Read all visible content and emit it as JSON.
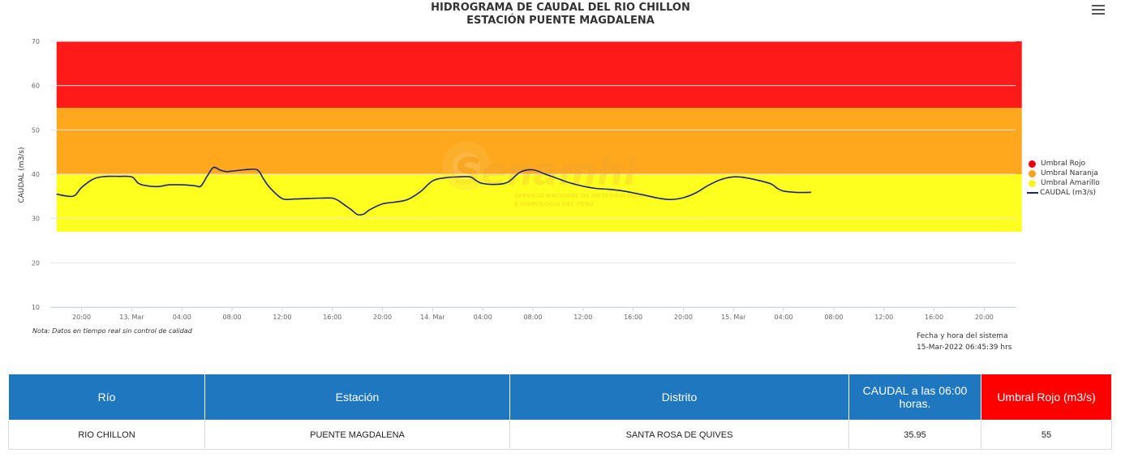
{
  "header": {
    "title_line1": "HIDROGRAMA DE CAUDAL DEL RIO CHILLON",
    "title_line2": "ESTACIÓN PUENTE MAGDALENA"
  },
  "chart_data": {
    "type": "line",
    "title": "HIDROGRAMA DE CAUDAL DEL RIO CHILLON / ESTACIÓN PUENTE MAGDALENA",
    "ylabel": "CAUDAL (m3/s)",
    "xlabel": "",
    "ylim": [
      10,
      70
    ],
    "yticks": [
      10,
      20,
      30,
      40,
      50,
      60,
      70
    ],
    "xlim_hours": [
      -2.5,
      74.5
    ],
    "xticks": [
      {
        "h": 0,
        "label": "20:00"
      },
      {
        "h": 4,
        "label": "13. Mar"
      },
      {
        "h": 8,
        "label": "04:00"
      },
      {
        "h": 12,
        "label": "08:00"
      },
      {
        "h": 16,
        "label": "12:00"
      },
      {
        "h": 20,
        "label": "16:00"
      },
      {
        "h": 24,
        "label": "20:00"
      },
      {
        "h": 28,
        "label": "14. Mar"
      },
      {
        "h": 32,
        "label": "04:00"
      },
      {
        "h": 36,
        "label": "08:00"
      },
      {
        "h": 40,
        "label": "12:00"
      },
      {
        "h": 44,
        "label": "16:00"
      },
      {
        "h": 48,
        "label": "20:00"
      },
      {
        "h": 52,
        "label": "15. Mar"
      },
      {
        "h": 56,
        "label": "04:00"
      },
      {
        "h": 60,
        "label": "08:00"
      },
      {
        "h": 64,
        "label": "12:00"
      },
      {
        "h": 68,
        "label": "16:00"
      },
      {
        "h": 72,
        "label": "20:00"
      }
    ],
    "grid": true,
    "legend_position": "right",
    "bands": [
      {
        "name": "Umbral Rojo",
        "from": 55,
        "to": 70,
        "color": "#ff1a1a"
      },
      {
        "name": "Umbral Naranja",
        "from": 40,
        "to": 55,
        "color": "#ffa81e"
      },
      {
        "name": "Umbral Amarillo",
        "from": 27,
        "to": 40,
        "color": "#ffff1f"
      }
    ],
    "band_x_range_hours": [
      -2,
      75
    ],
    "series": [
      {
        "name": "CAUDAL (m3/s)",
        "color": "#1a237e",
        "points": [
          [
            -2,
            35.5
          ],
          [
            -1,
            35
          ],
          [
            -0.5,
            35.3
          ],
          [
            0,
            37
          ],
          [
            1,
            39
          ],
          [
            2,
            39.5
          ],
          [
            3,
            39.5
          ],
          [
            4,
            39.4
          ],
          [
            4.5,
            38
          ],
          [
            5,
            37.5
          ],
          [
            6,
            37.2
          ],
          [
            7,
            37.6
          ],
          [
            8,
            37.6
          ],
          [
            9,
            37.4
          ],
          [
            9.5,
            37.3
          ],
          [
            10,
            39.5
          ],
          [
            10.5,
            41.5
          ],
          [
            11,
            41
          ],
          [
            11.5,
            40.6
          ],
          [
            12,
            40.7
          ],
          [
            13,
            41
          ],
          [
            14,
            41
          ],
          [
            14.5,
            39
          ],
          [
            15,
            37
          ],
          [
            16,
            34.5
          ],
          [
            17,
            34.4
          ],
          [
            18,
            34.5
          ],
          [
            19,
            34.6
          ],
          [
            20,
            34.6
          ],
          [
            20.5,
            34
          ],
          [
            21,
            33
          ],
          [
            21.5,
            32
          ],
          [
            22,
            30.9
          ],
          [
            22.5,
            31
          ],
          [
            23,
            32
          ],
          [
            24,
            33.3
          ],
          [
            25,
            33.7
          ],
          [
            26,
            34.3
          ],
          [
            27,
            36
          ],
          [
            28,
            38.5
          ],
          [
            29,
            39.2
          ],
          [
            30,
            39.4
          ],
          [
            31,
            39.4
          ],
          [
            31.5,
            38.5
          ],
          [
            32,
            37.9
          ],
          [
            33,
            37.7
          ],
          [
            34,
            38.2
          ],
          [
            35,
            40.5
          ],
          [
            36,
            41
          ],
          [
            37,
            40
          ],
          [
            38,
            39
          ],
          [
            39,
            38
          ],
          [
            40,
            37.3
          ],
          [
            41,
            36.8
          ],
          [
            42,
            36.6
          ],
          [
            43,
            36.3
          ],
          [
            44,
            35.8
          ],
          [
            45,
            35.2
          ],
          [
            46,
            34.6
          ],
          [
            47,
            34.3
          ],
          [
            48,
            34.7
          ],
          [
            49,
            35.8
          ],
          [
            50,
            37.5
          ],
          [
            51,
            38.8
          ],
          [
            52,
            39.4
          ],
          [
            53,
            39.2
          ],
          [
            54,
            38.6
          ],
          [
            55,
            37.8
          ],
          [
            55.5,
            36.8
          ],
          [
            56,
            36.2
          ],
          [
            57,
            35.9
          ],
          [
            58,
            35.9
          ],
          [
            58.2,
            35.95
          ]
        ]
      }
    ]
  },
  "legend": {
    "items": [
      {
        "label": "Umbral Rojo",
        "color": "#e8000b"
      },
      {
        "label": "Umbral Naranja",
        "color": "#f7a21c"
      },
      {
        "label": "Umbral Amarillo",
        "color": "#fbf224"
      },
      {
        "label": "CAUDAL (m3/s)",
        "color": "#1a237e"
      }
    ]
  },
  "watermark": {
    "brand": "Senamhi",
    "line1": "SERVICIO NACIONAL DE METEOROLOGÍA",
    "line2": "E HIDROLOGÍA DEL PERÚ"
  },
  "note": "Nota: Datos en tiempo real sin control de calidad",
  "system_date": {
    "label": "Fecha y hora del sistema",
    "value": "15-Mar-2022 06:45:39 hrs"
  },
  "table": {
    "headers": [
      "Río",
      "Estación",
      "Distrito",
      "CAUDAL a las 06:00 horas.",
      "Umbral Rojo (m3/s)"
    ],
    "row": [
      "RIO CHILLON",
      "PUENTE MAGDALENA",
      "SANTA ROSA DE QUIVES",
      "35.95",
      "55"
    ]
  }
}
